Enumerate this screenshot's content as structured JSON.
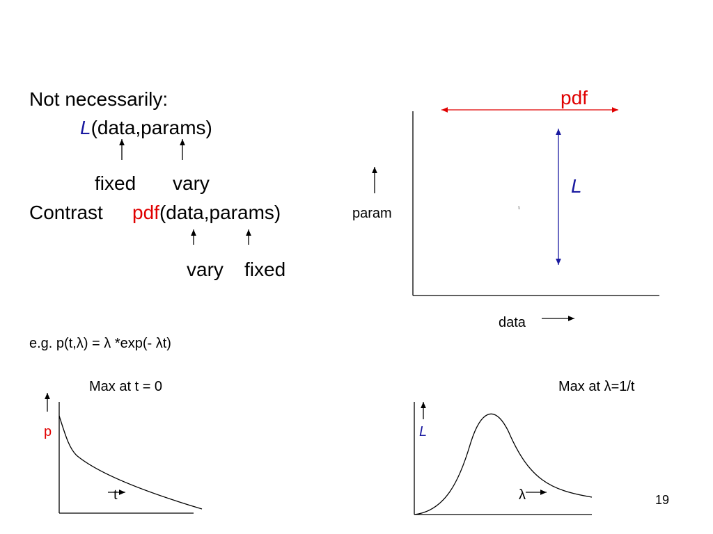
{
  "main": {
    "line1": "Not necessarily:",
    "likelihood_symbol": "L",
    "likelihood_args": "(data,params)",
    "likelihood_notes": [
      "fixed",
      "vary"
    ],
    "contrast_word": "Contrast",
    "pdf_symbol": "pdf",
    "pdf_args": "(data,params)",
    "pdf_notes": [
      "vary",
      "fixed"
    ]
  },
  "diagram": {
    "pdf_label": "pdf",
    "l_label": "L",
    "y_label": "param",
    "x_label": "data",
    "marker": "τ"
  },
  "example": "e.g. p(t,λ) = λ *exp(- λt)",
  "left_plot": {
    "title": "Max at t = 0",
    "y_label": "p",
    "x_label": "t"
  },
  "right_plot": {
    "title": "Max at λ=1/t",
    "y_label": "L",
    "x_label": "λ"
  },
  "page_number": "19"
}
